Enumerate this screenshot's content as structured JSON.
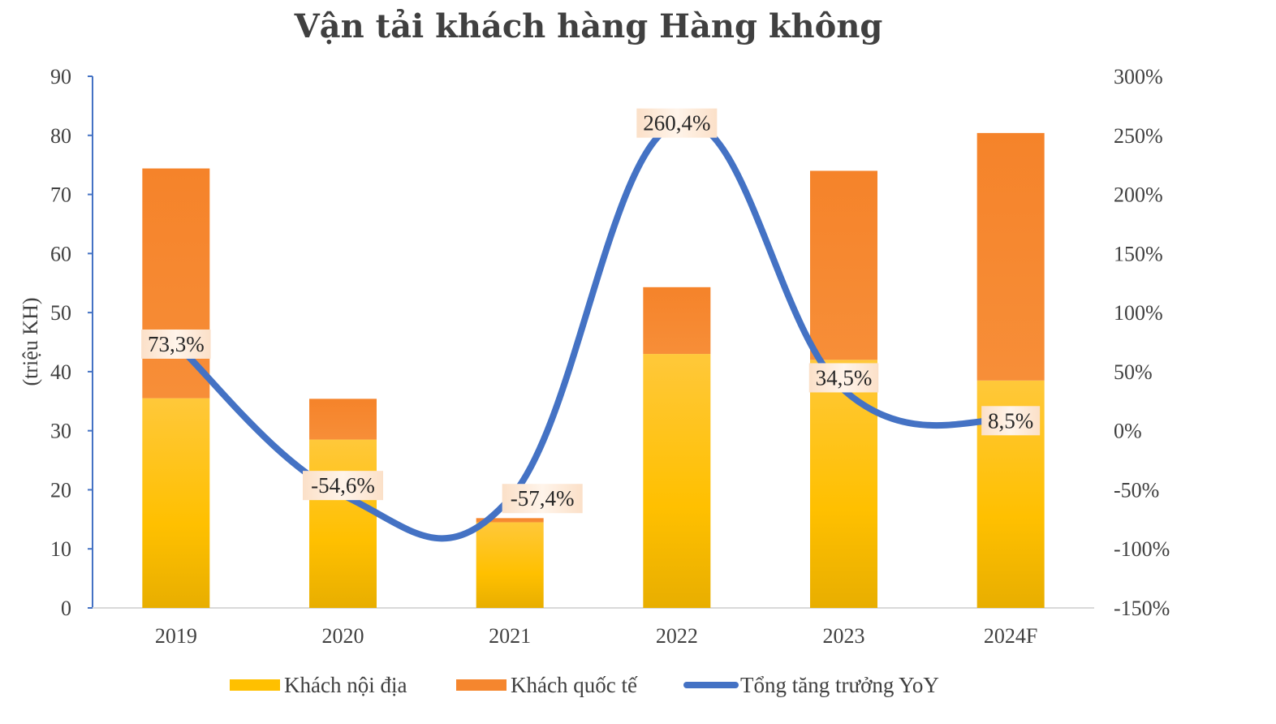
{
  "chart_data": {
    "type": "bar",
    "stacked": true,
    "title": "Vận tải khách hàng Hàng không",
    "ylabel": "(triệu KH)",
    "categories": [
      "2019",
      "2020",
      "2021",
      "2022",
      "2023",
      "2024F"
    ],
    "ylim": [
      0,
      90
    ],
    "yticks": [
      "0",
      "10",
      "20",
      "30",
      "40",
      "50",
      "60",
      "70",
      "80",
      "90"
    ],
    "y2lim": [
      -150,
      300
    ],
    "y2ticks": [
      "-150%",
      "-100%",
      "-50%",
      "0%",
      "50%",
      "100%",
      "150%",
      "200%",
      "250%",
      "300%"
    ],
    "series": [
      {
        "name": "Khách nội địa",
        "axis": "left",
        "color": "#FFC000",
        "values": [
          35.5,
          28.5,
          14.5,
          43.0,
          42.0,
          38.5
        ]
      },
      {
        "name": "Khách quốc tế",
        "axis": "left",
        "color": "#F5862E",
        "values": [
          38.9,
          6.9,
          0.7,
          11.3,
          32.0,
          41.9
        ]
      },
      {
        "name": "Tổng tăng trưởng YoY",
        "axis": "right",
        "type": "line",
        "color": "#4472C4",
        "values": [
          73.3,
          -54.6,
          -57.4,
          260.4,
          34.5,
          8.5
        ],
        "labels": [
          "73,3%",
          "-54,6%",
          "-57,4%",
          "260,4%",
          "34,5%",
          "8,5%"
        ]
      }
    ],
    "grid": false,
    "legend_position": "bottom"
  }
}
